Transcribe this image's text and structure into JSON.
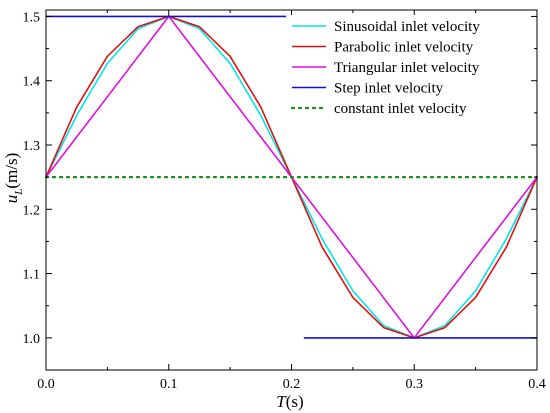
{
  "chart_data": {
    "type": "line",
    "xlabel": {
      "main": "T",
      "unit": "(s)"
    },
    "ylabel": {
      "main": "u",
      "sub": "L",
      "unit": "(m/s)"
    },
    "xlim": [
      0,
      0.4
    ],
    "ylim": [
      0.95,
      1.51
    ],
    "xticks": [
      0.0,
      0.1,
      0.2,
      0.3,
      0.4
    ],
    "xtick_labels": [
      "0.0",
      "0.1",
      "0.2",
      "0.3",
      "0.4"
    ],
    "yticks": [
      1.0,
      1.1,
      1.2,
      1.3,
      1.4,
      1.5
    ],
    "ytick_labels": [
      "1.0",
      "1.1",
      "1.2",
      "1.3",
      "1.4",
      "1.5"
    ],
    "grid": false,
    "legend_position": "top-right",
    "series": [
      {
        "name": "Sinusoidal inlet velocity",
        "color": "#00e5e5",
        "style": "solid",
        "x": [
          0.0,
          0.025,
          0.05,
          0.075,
          0.1,
          0.125,
          0.15,
          0.175,
          0.2,
          0.225,
          0.25,
          0.275,
          0.3,
          0.325,
          0.35,
          0.375,
          0.4
        ],
        "y": [
          1.25,
          1.346,
          1.427,
          1.481,
          1.5,
          1.481,
          1.427,
          1.346,
          1.25,
          1.154,
          1.073,
          1.019,
          1.0,
          1.019,
          1.073,
          1.154,
          1.25
        ]
      },
      {
        "name": "Parabolic inlet velocity",
        "color": "#e01010",
        "style": "solid",
        "x": [
          0.0,
          0.025,
          0.05,
          0.075,
          0.1,
          0.125,
          0.15,
          0.175,
          0.2,
          0.225,
          0.25,
          0.275,
          0.3,
          0.325,
          0.35,
          0.375,
          0.4
        ],
        "y": [
          1.25,
          1.359,
          1.438,
          1.484,
          1.5,
          1.484,
          1.438,
          1.359,
          1.25,
          1.141,
          1.063,
          1.016,
          1.0,
          1.016,
          1.063,
          1.141,
          1.25
        ]
      },
      {
        "name": "Triangular inlet velocity",
        "color": "#e010e0",
        "style": "solid",
        "x": [
          0.0,
          0.1,
          0.3,
          0.4
        ],
        "y": [
          1.25,
          1.5,
          1.0,
          1.25
        ]
      },
      {
        "name": "Step inlet velocity",
        "color": "#1010d0",
        "style": "solid",
        "segments": [
          {
            "x": [
              0.0,
              0.2
            ],
            "y": [
              1.5,
              1.5
            ]
          },
          {
            "x": [
              0.21,
              0.4
            ],
            "y": [
              1.0,
              1.0
            ]
          }
        ]
      },
      {
        "name": "constant inlet velocity",
        "color": "#109010",
        "style": "dotted",
        "x": [
          0.0,
          0.4
        ],
        "y": [
          1.25,
          1.25
        ]
      }
    ]
  }
}
